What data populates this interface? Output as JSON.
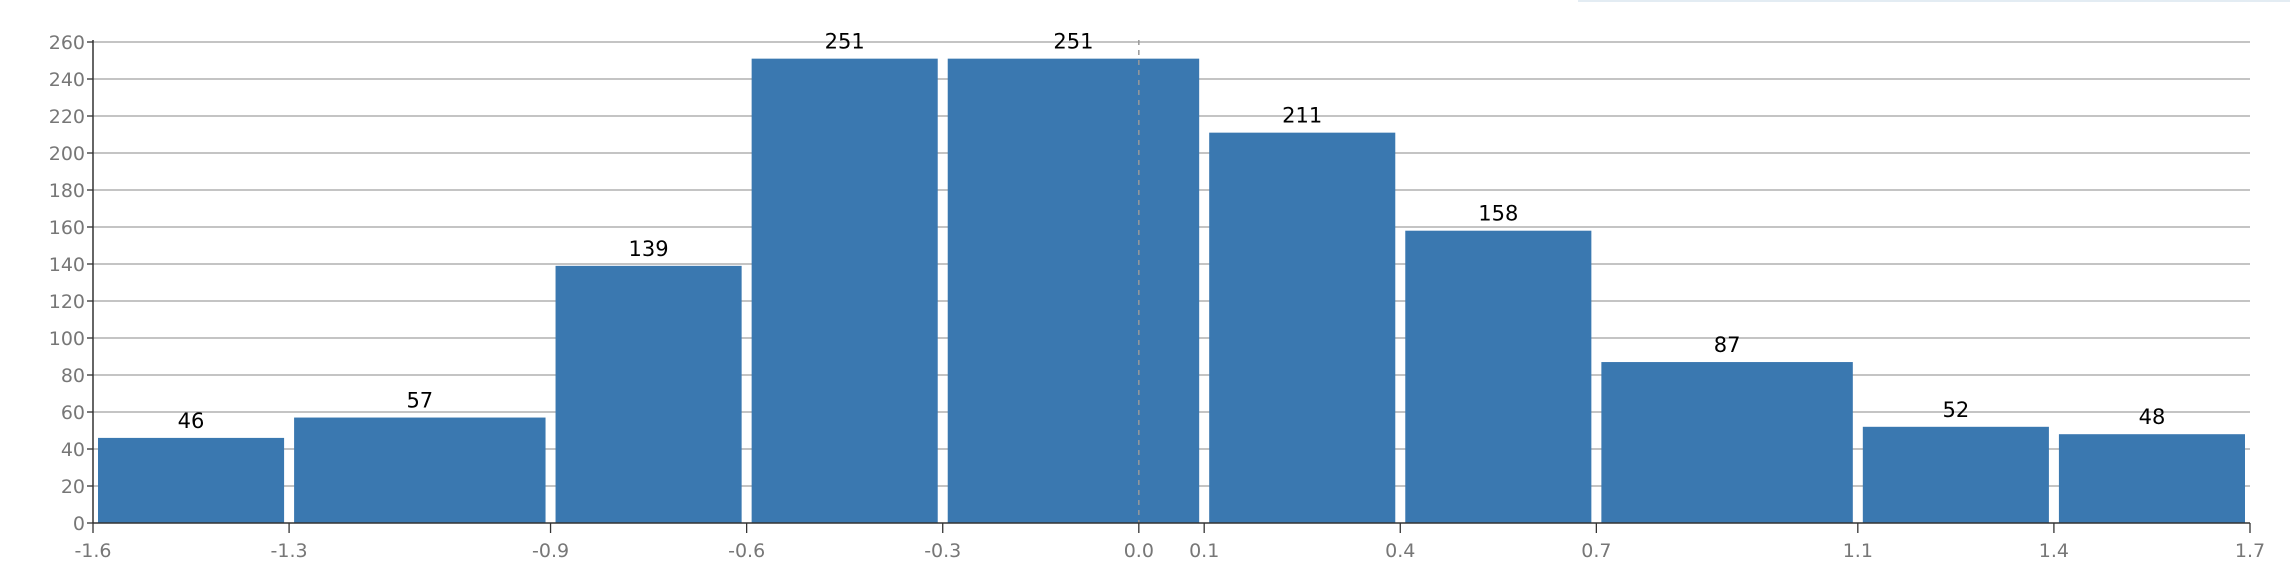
{
  "chart_data": {
    "type": "bar",
    "subtype": "histogram",
    "bins": [
      {
        "x0": -1.6,
        "x1": -1.3,
        "count": 46
      },
      {
        "x0": -1.3,
        "x1": -0.9,
        "count": 57
      },
      {
        "x0": -0.9,
        "x1": -0.6,
        "count": 139
      },
      {
        "x0": -0.6,
        "x1": -0.3,
        "count": 251
      },
      {
        "x0": -0.3,
        "x1": 0.1,
        "count": 251
      },
      {
        "x0": 0.1,
        "x1": 0.4,
        "count": 211
      },
      {
        "x0": 0.4,
        "x1": 0.7,
        "count": 158
      },
      {
        "x0": 0.7,
        "x1": 1.1,
        "count": 87
      },
      {
        "x0": 1.1,
        "x1": 1.4,
        "count": 52
      },
      {
        "x0": 1.4,
        "x1": 1.7,
        "count": 48
      }
    ],
    "x_ticks": [
      "-1.6",
      "-1.3",
      "-0.9",
      "-0.6",
      "-0.3",
      "0.0",
      "0.1",
      "0.4",
      "0.7",
      "1.1",
      "1.4",
      "1.7"
    ],
    "y_ticks": [
      0,
      20,
      40,
      60,
      80,
      100,
      120,
      140,
      160,
      180,
      200,
      220,
      240,
      260
    ],
    "ylim": [
      0,
      260
    ],
    "reference_line": {
      "x": 0.0,
      "style": "dashed"
    },
    "grid": true,
    "legend": "none",
    "title": "",
    "xlabel": "",
    "ylabel": "",
    "colors": {
      "bar": "#3a78b0",
      "grid": "#a0a0a0",
      "axis": "#333333",
      "tick_text": "#777777",
      "reference_line": "#999999"
    }
  }
}
